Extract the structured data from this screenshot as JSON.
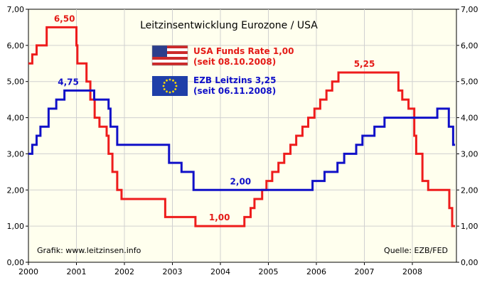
{
  "chart_data": {
    "type": "line",
    "title": "Leitzinsentwicklung Eurozone / USA",
    "xlabel": "",
    "ylabel": "",
    "xlim": [
      2000,
      2008.917
    ],
    "ylim": [
      0,
      7
    ],
    "x_ticks": [
      "2000",
      "2001",
      "2002",
      "2003",
      "2004",
      "2005",
      "2006",
      "2007",
      "2008"
    ],
    "y_ticks": [
      "0,00",
      "1,00",
      "2,00",
      "3,00",
      "4,00",
      "5,00",
      "6,00",
      "7,00"
    ],
    "grid": true,
    "legend_placement": "top-center",
    "series": [
      {
        "name": "USA Funds Rate",
        "legend_line1": "USA Funds Rate 1,00",
        "legend_line2": "(seit 08.10.2008)",
        "color": "#ee1c1c",
        "icon": "us-flag-icon",
        "step_points": [
          {
            "x": 2000.0,
            "y": 5.5
          },
          {
            "x": 2000.08,
            "y": 5.75
          },
          {
            "x": 2000.17,
            "y": 6.0
          },
          {
            "x": 2000.38,
            "y": 6.5
          },
          {
            "x": 2001.0,
            "y": 6.0
          },
          {
            "x": 2001.02,
            "y": 5.5
          },
          {
            "x": 2001.21,
            "y": 5.0
          },
          {
            "x": 2001.29,
            "y": 4.5
          },
          {
            "x": 2001.38,
            "y": 4.0
          },
          {
            "x": 2001.48,
            "y": 3.75
          },
          {
            "x": 2001.63,
            "y": 3.5
          },
          {
            "x": 2001.67,
            "y": 3.0
          },
          {
            "x": 2001.75,
            "y": 2.5
          },
          {
            "x": 2001.85,
            "y": 2.0
          },
          {
            "x": 2001.94,
            "y": 1.75
          },
          {
            "x": 2002.85,
            "y": 1.25
          },
          {
            "x": 2003.48,
            "y": 1.0
          },
          {
            "x": 2004.5,
            "y": 1.25
          },
          {
            "x": 2004.63,
            "y": 1.5
          },
          {
            "x": 2004.71,
            "y": 1.75
          },
          {
            "x": 2004.87,
            "y": 2.0
          },
          {
            "x": 2004.96,
            "y": 2.25
          },
          {
            "x": 2005.08,
            "y": 2.5
          },
          {
            "x": 2005.21,
            "y": 2.75
          },
          {
            "x": 2005.33,
            "y": 3.0
          },
          {
            "x": 2005.46,
            "y": 3.25
          },
          {
            "x": 2005.58,
            "y": 3.5
          },
          {
            "x": 2005.71,
            "y": 3.75
          },
          {
            "x": 2005.83,
            "y": 4.0
          },
          {
            "x": 2005.96,
            "y": 4.25
          },
          {
            "x": 2006.08,
            "y": 4.5
          },
          {
            "x": 2006.21,
            "y": 4.75
          },
          {
            "x": 2006.33,
            "y": 5.0
          },
          {
            "x": 2006.46,
            "y": 5.25
          },
          {
            "x": 2007.71,
            "y": 4.75
          },
          {
            "x": 2007.79,
            "y": 4.5
          },
          {
            "x": 2007.92,
            "y": 4.25
          },
          {
            "x": 2008.04,
            "y": 3.5
          },
          {
            "x": 2008.08,
            "y": 3.0
          },
          {
            "x": 2008.21,
            "y": 2.25
          },
          {
            "x": 2008.33,
            "y": 2.0
          },
          {
            "x": 2008.77,
            "y": 1.5
          },
          {
            "x": 2008.83,
            "y": 1.0
          },
          {
            "x": 2008.89,
            "y": 1.0
          }
        ]
      },
      {
        "name": "EZB Leitzins",
        "legend_line1": "EZB Leitzins 3,25",
        "legend_line2": "(seit 06.11.2008)",
        "color": "#1010c8",
        "icon": "eu-flag-icon",
        "step_points": [
          {
            "x": 2000.0,
            "y": 3.0
          },
          {
            "x": 2000.08,
            "y": 3.25
          },
          {
            "x": 2000.17,
            "y": 3.5
          },
          {
            "x": 2000.25,
            "y": 3.75
          },
          {
            "x": 2000.42,
            "y": 4.25
          },
          {
            "x": 2000.58,
            "y": 4.5
          },
          {
            "x": 2000.75,
            "y": 4.75
          },
          {
            "x": 2001.37,
            "y": 4.5
          },
          {
            "x": 2001.67,
            "y": 4.25
          },
          {
            "x": 2001.71,
            "y": 3.75
          },
          {
            "x": 2001.85,
            "y": 3.25
          },
          {
            "x": 2002.93,
            "y": 2.75
          },
          {
            "x": 2003.19,
            "y": 2.5
          },
          {
            "x": 2003.44,
            "y": 2.0
          },
          {
            "x": 2005.92,
            "y": 2.25
          },
          {
            "x": 2006.17,
            "y": 2.5
          },
          {
            "x": 2006.44,
            "y": 2.75
          },
          {
            "x": 2006.58,
            "y": 3.0
          },
          {
            "x": 2006.83,
            "y": 3.25
          },
          {
            "x": 2006.96,
            "y": 3.5
          },
          {
            "x": 2007.21,
            "y": 3.75
          },
          {
            "x": 2007.42,
            "y": 4.0
          },
          {
            "x": 2008.52,
            "y": 4.25
          },
          {
            "x": 2008.76,
            "y": 3.75
          },
          {
            "x": 2008.85,
            "y": 3.25
          },
          {
            "x": 2008.89,
            "y": 3.25
          }
        ]
      }
    ],
    "annotations": [
      {
        "text": "6,50",
        "x": 2000.75,
        "y": 6.5,
        "series": 0
      },
      {
        "text": "4,75",
        "x": 2000.83,
        "y": 4.75,
        "series": 1
      },
      {
        "text": "1,00",
        "x": 2003.98,
        "y": 1.0,
        "series": 0
      },
      {
        "text": "2,00",
        "x": 2004.42,
        "y": 2.0,
        "series": 1
      },
      {
        "text": "5,25",
        "x": 2007.0,
        "y": 5.25,
        "series": 0
      }
    ],
    "footer_left": "Grafik: www.leitzinsen.info",
    "footer_right": "Quelle: EZB/FED"
  }
}
